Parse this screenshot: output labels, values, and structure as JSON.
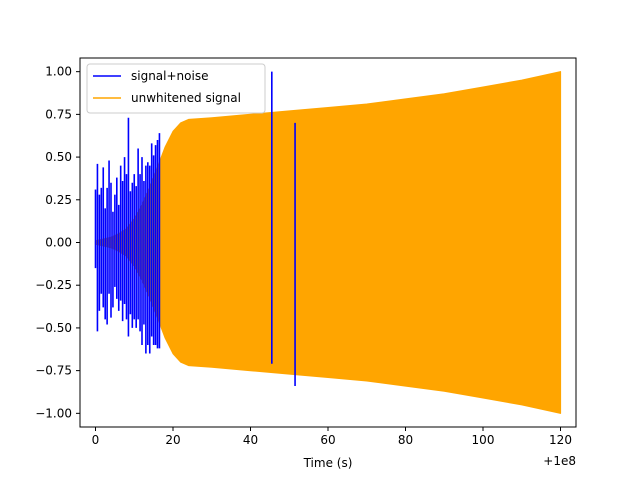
{
  "chart_data": {
    "type": "line",
    "title": "",
    "xlabel": "Time (s)",
    "ylabel": "",
    "x_offset_label": "+1e8",
    "xlim": [
      -4,
      124
    ],
    "ylim": [
      -1.08,
      1.08
    ],
    "x_ticks": [
      0,
      20,
      40,
      60,
      80,
      100,
      120
    ],
    "x_tick_labels": [
      "0",
      "20",
      "40",
      "60",
      "80",
      "100",
      "120"
    ],
    "y_ticks": [
      1.0,
      0.75,
      0.5,
      0.25,
      0.0,
      -0.25,
      -0.5,
      -0.75,
      -1.0
    ],
    "y_tick_labels": [
      "1.00",
      "0.75",
      "0.50",
      "0.25",
      "0.00",
      "−0.25",
      "−0.50",
      "−0.75",
      "−1.00"
    ],
    "grid": false,
    "legend_position": "upper-left",
    "series": [
      {
        "name": "signal+noise",
        "color": "#0000ff",
        "peak_points": [
          {
            "x": 0.0,
            "y_upper": 0.31,
            "y_lower": -0.15
          },
          {
            "x": 0.5,
            "y_upper": 0.46,
            "y_lower": -0.52
          },
          {
            "x": 1.0,
            "y_upper": 0.28,
            "y_lower": -0.4
          },
          {
            "x": 1.5,
            "y_upper": 0.32,
            "y_lower": -0.3
          },
          {
            "x": 2.0,
            "y_upper": 0.44,
            "y_lower": -0.38
          },
          {
            "x": 2.5,
            "y_upper": 0.2,
            "y_lower": -0.45
          },
          {
            "x": 3.0,
            "y_upper": 0.32,
            "y_lower": -0.48
          },
          {
            "x": 3.5,
            "y_upper": 0.48,
            "y_lower": -0.3
          },
          {
            "x": 4.0,
            "y_upper": 0.35,
            "y_lower": -0.44
          },
          {
            "x": 4.5,
            "y_upper": 0.18,
            "y_lower": -0.38
          },
          {
            "x": 5.0,
            "y_upper": 0.28,
            "y_lower": -0.26
          },
          {
            "x": 5.5,
            "y_upper": 0.38,
            "y_lower": -0.33
          },
          {
            "x": 6.0,
            "y_upper": 0.22,
            "y_lower": -0.4
          },
          {
            "x": 6.5,
            "y_upper": 0.45,
            "y_lower": -0.34
          },
          {
            "x": 7.0,
            "y_upper": 0.36,
            "y_lower": -0.46
          },
          {
            "x": 7.5,
            "y_upper": 0.5,
            "y_lower": -0.36
          },
          {
            "x": 8.0,
            "y_upper": 0.4,
            "y_lower": -0.45
          },
          {
            "x": 8.5,
            "y_upper": 0.73,
            "y_lower": -0.55
          },
          {
            "x": 9.0,
            "y_upper": 0.3,
            "y_lower": -0.42
          },
          {
            "x": 9.5,
            "y_upper": 0.35,
            "y_lower": -0.5
          },
          {
            "x": 10.0,
            "y_upper": 0.4,
            "y_lower": -0.45
          },
          {
            "x": 10.5,
            "y_upper": 0.33,
            "y_lower": -0.5
          },
          {
            "x": 11.0,
            "y_upper": 0.55,
            "y_lower": -0.45
          },
          {
            "x": 11.5,
            "y_upper": 0.4,
            "y_lower": -0.52
          },
          {
            "x": 12.0,
            "y_upper": 0.5,
            "y_lower": -0.6
          },
          {
            "x": 12.5,
            "y_upper": 0.36,
            "y_lower": -0.48
          },
          {
            "x": 13.0,
            "y_upper": 0.45,
            "y_lower": -0.65
          },
          {
            "x": 13.5,
            "y_upper": 0.47,
            "y_lower": -0.6
          },
          {
            "x": 14.0,
            "y_upper": 0.45,
            "y_lower": -0.65
          },
          {
            "x": 14.5,
            "y_upper": 0.58,
            "y_lower": -0.55
          },
          {
            "x": 15.0,
            "y_upper": 0.51,
            "y_lower": -0.6
          },
          {
            "x": 15.5,
            "y_upper": 0.57,
            "y_lower": -0.6
          },
          {
            "x": 16.0,
            "y_upper": 0.6,
            "y_lower": -0.62
          },
          {
            "x": 16.5,
            "y_upper": 0.64,
            "y_lower": -0.62
          },
          {
            "x": 45.5,
            "y_upper": 1.0,
            "y_lower": -0.71
          },
          {
            "x": 51.5,
            "y_upper": 0.7,
            "y_lower": -0.84
          }
        ]
      },
      {
        "name": "unwhitened signal",
        "color": "#ffa500",
        "envelope": [
          {
            "x": 0.0,
            "y_upper": 0.01,
            "y_lower": -0.01
          },
          {
            "x": 2.0,
            "y_upper": 0.02,
            "y_lower": -0.02
          },
          {
            "x": 4.0,
            "y_upper": 0.03,
            "y_lower": -0.03
          },
          {
            "x": 6.0,
            "y_upper": 0.05,
            "y_lower": -0.05
          },
          {
            "x": 8.0,
            "y_upper": 0.08,
            "y_lower": -0.08
          },
          {
            "x": 10.0,
            "y_upper": 0.14,
            "y_lower": -0.14
          },
          {
            "x": 12.0,
            "y_upper": 0.22,
            "y_lower": -0.22
          },
          {
            "x": 14.0,
            "y_upper": 0.32,
            "y_lower": -0.32
          },
          {
            "x": 16.0,
            "y_upper": 0.44,
            "y_lower": -0.44
          },
          {
            "x": 18.0,
            "y_upper": 0.56,
            "y_lower": -0.56
          },
          {
            "x": 20.0,
            "y_upper": 0.65,
            "y_lower": -0.65
          },
          {
            "x": 22.0,
            "y_upper": 0.7,
            "y_lower": -0.7
          },
          {
            "x": 24.0,
            "y_upper": 0.72,
            "y_lower": -0.72
          },
          {
            "x": 30.0,
            "y_upper": 0.73,
            "y_lower": -0.73
          },
          {
            "x": 40.0,
            "y_upper": 0.75,
            "y_lower": -0.75
          },
          {
            "x": 50.0,
            "y_upper": 0.77,
            "y_lower": -0.77
          },
          {
            "x": 60.0,
            "y_upper": 0.79,
            "y_lower": -0.79
          },
          {
            "x": 70.0,
            "y_upper": 0.81,
            "y_lower": -0.81
          },
          {
            "x": 80.0,
            "y_upper": 0.84,
            "y_lower": -0.84
          },
          {
            "x": 90.0,
            "y_upper": 0.87,
            "y_lower": -0.87
          },
          {
            "x": 100.0,
            "y_upper": 0.91,
            "y_lower": -0.91
          },
          {
            "x": 110.0,
            "y_upper": 0.95,
            "y_lower": -0.95
          },
          {
            "x": 120.0,
            "y_upper": 1.0,
            "y_lower": -1.0
          }
        ]
      }
    ]
  }
}
